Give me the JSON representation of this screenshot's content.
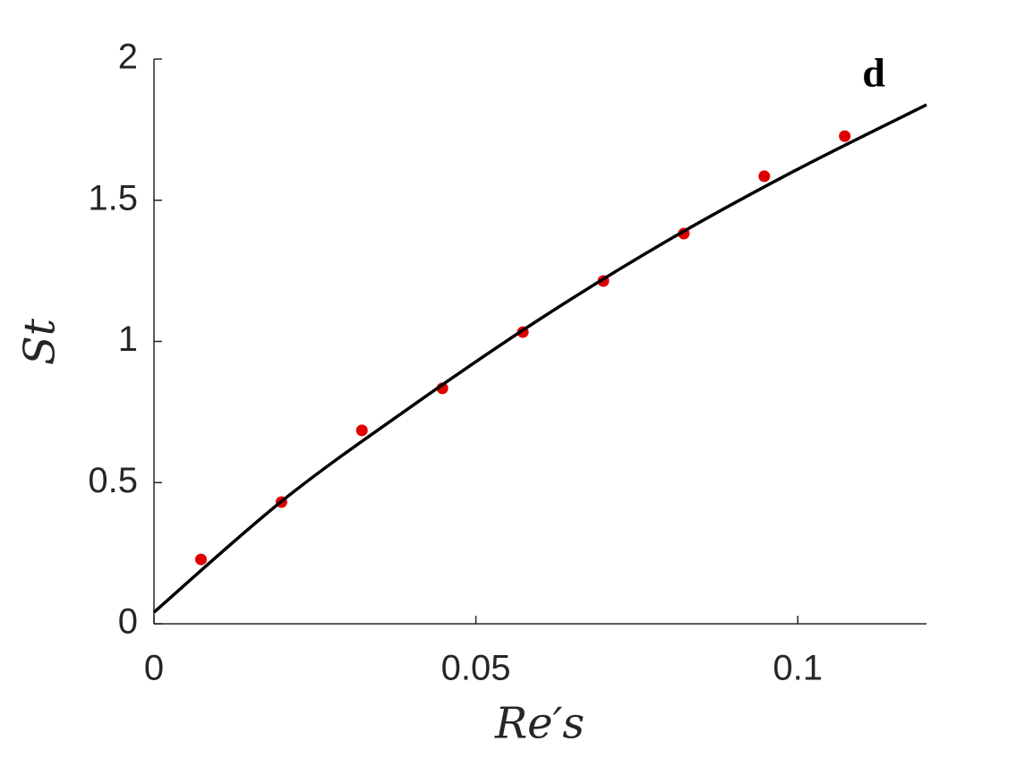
{
  "chart_data": {
    "type": "scatter",
    "xlabel": "Re′s",
    "ylabel": "St",
    "annotation": "d",
    "xlim": [
      0,
      0.12
    ],
    "ylim": [
      0,
      2
    ],
    "xticks": [
      0,
      0.05,
      0.1
    ],
    "yticks": [
      0,
      0.5,
      1,
      1.5,
      2
    ],
    "grid": false,
    "series": [
      {
        "type": "scatter",
        "color": "#e00000",
        "x": [
          0.0073,
          0.0198,
          0.0323,
          0.0448,
          0.0573,
          0.0698,
          0.0823,
          0.0948,
          0.1073
        ],
        "values": [
          0.228,
          0.431,
          0.685,
          0.834,
          1.033,
          1.214,
          1.382,
          1.585,
          1.727
        ]
      },
      {
        "type": "line",
        "color": "#000000",
        "x": [
          0,
          0.02,
          0.04,
          0.06,
          0.08,
          0.1,
          0.12
        ],
        "values": [
          0.041,
          0.437,
          0.77,
          1.08,
          1.36,
          1.61,
          1.838
        ]
      }
    ]
  }
}
